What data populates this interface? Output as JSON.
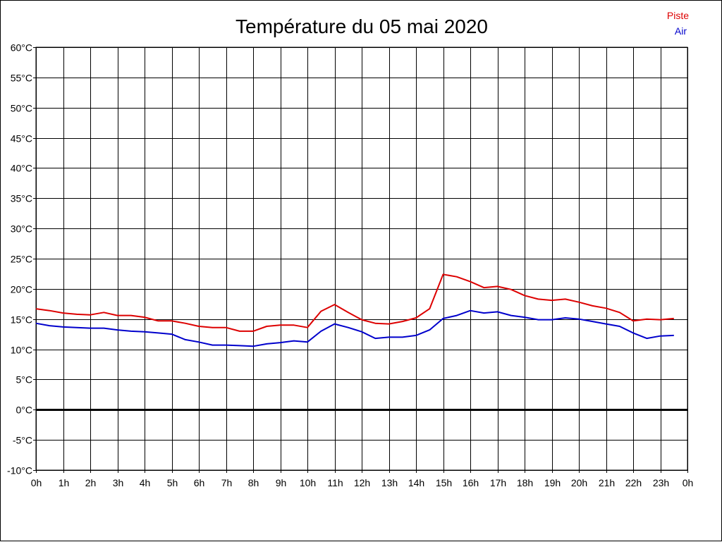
{
  "chart_data": {
    "type": "line",
    "title": "Température du 05 mai 2020",
    "xlabel": "",
    "ylabel": "",
    "ylim": [
      -10,
      60
    ],
    "y_ticks": [
      "60°C",
      "55°C",
      "50°C",
      "45°C",
      "40°C",
      "35°C",
      "30°C",
      "25°C",
      "20°C",
      "15°C",
      "10°C",
      "5°C",
      "0°C",
      "-5°C",
      "-10°C"
    ],
    "y_tick_values": [
      60,
      55,
      50,
      45,
      40,
      35,
      30,
      25,
      20,
      15,
      10,
      5,
      0,
      -5,
      -10
    ],
    "x_ticks": [
      "0h",
      "1h",
      "2h",
      "3h",
      "4h",
      "5h",
      "6h",
      "7h",
      "8h",
      "9h",
      "10h",
      "11h",
      "12h",
      "13h",
      "14h",
      "15h",
      "16h",
      "17h",
      "18h",
      "19h",
      "20h",
      "21h",
      "22h",
      "23h",
      "0h"
    ],
    "x_tick_values": [
      0,
      1,
      2,
      3,
      4,
      5,
      6,
      7,
      8,
      9,
      10,
      11,
      12,
      13,
      14,
      15,
      16,
      17,
      18,
      19,
      20,
      21,
      22,
      23,
      24
    ],
    "xlim": [
      0,
      24
    ],
    "grid": true,
    "zero_line": true,
    "legend_position": "top-right",
    "series": [
      {
        "name": "Piste",
        "color": "#dd0000",
        "x": [
          0,
          0.5,
          1,
          1.5,
          2,
          2.5,
          3,
          3.5,
          4,
          4.5,
          5,
          5.5,
          6,
          6.5,
          7,
          7.5,
          8,
          8.5,
          9,
          9.5,
          10,
          10.5,
          11,
          11.5,
          12,
          12.5,
          13,
          13.5,
          14,
          14.5,
          15,
          15.5,
          16,
          16.5,
          17,
          17.5,
          18,
          18.5,
          19,
          19.5,
          20,
          20.5,
          21,
          21.5,
          22,
          22.5,
          23,
          23.5
        ],
        "values": [
          16.7,
          16.4,
          16.0,
          15.8,
          15.7,
          16.1,
          15.6,
          15.6,
          15.3,
          14.7,
          14.7,
          14.3,
          13.8,
          13.6,
          13.6,
          13.0,
          13.0,
          13.8,
          14.0,
          14.0,
          13.6,
          16.3,
          17.4,
          16.1,
          14.9,
          14.3,
          14.2,
          14.6,
          15.2,
          16.7,
          22.4,
          22.0,
          21.2,
          20.2,
          20.4,
          19.9,
          18.9,
          18.3,
          18.1,
          18.3,
          17.8,
          17.2,
          16.8,
          16.1,
          14.7,
          15.0,
          14.9,
          15.1
        ]
      },
      {
        "name": "Air",
        "color": "#0000cc",
        "x": [
          0,
          0.5,
          1,
          1.5,
          2,
          2.5,
          3,
          3.5,
          4,
          4.5,
          5,
          5.5,
          6,
          6.5,
          7,
          7.5,
          8,
          8.5,
          9,
          9.5,
          10,
          10.5,
          11,
          11.5,
          12,
          12.5,
          13,
          13.5,
          14,
          14.5,
          15,
          15.5,
          16,
          16.5,
          17,
          17.5,
          18,
          18.5,
          19,
          19.5,
          20,
          20.5,
          21,
          21.5,
          22,
          22.5,
          23,
          23.5
        ],
        "values": [
          14.3,
          13.9,
          13.7,
          13.6,
          13.5,
          13.5,
          13.2,
          13.0,
          12.9,
          12.7,
          12.5,
          11.6,
          11.2,
          10.7,
          10.7,
          10.6,
          10.5,
          10.9,
          11.1,
          11.4,
          11.2,
          13.0,
          14.2,
          13.6,
          12.9,
          11.8,
          12.0,
          12.0,
          12.3,
          13.2,
          15.1,
          15.6,
          16.4,
          16.0,
          16.2,
          15.6,
          15.3,
          14.9,
          14.9,
          15.2,
          15.0,
          14.6,
          14.2,
          13.8,
          12.7,
          11.8,
          12.2,
          12.3
        ]
      }
    ]
  }
}
